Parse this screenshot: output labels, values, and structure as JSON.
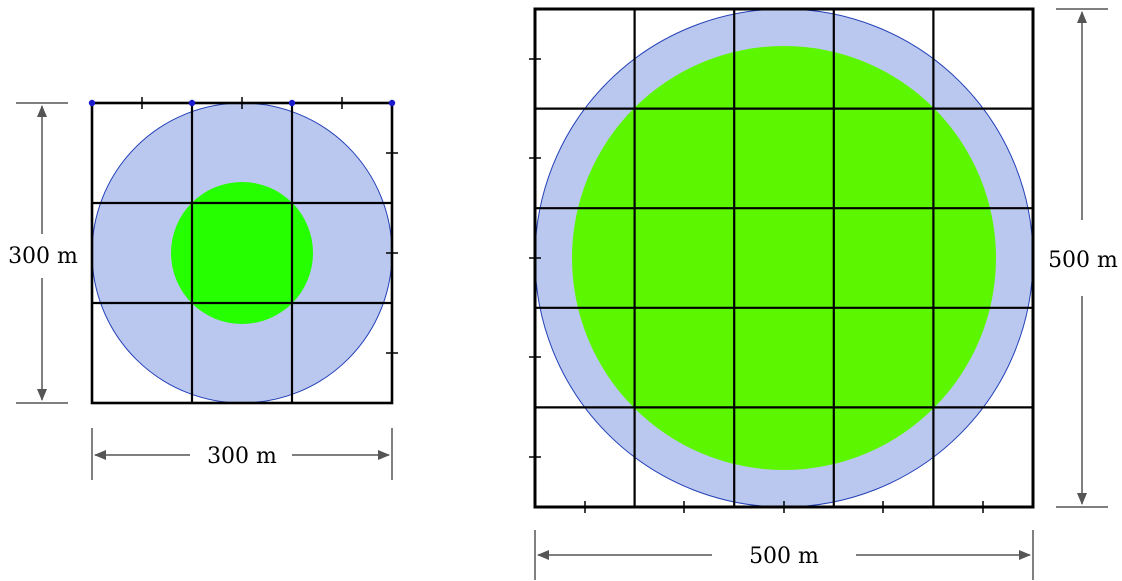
{
  "diagrams": [
    {
      "width_label": "300 m",
      "height_label": "300 m",
      "grid_divisions": 3,
      "circle_color": "#bac8ef",
      "circle_stroke": "#2340b8",
      "inner_circle_color": "#26ff00"
    },
    {
      "width_label": "500 m",
      "height_label": "500 m",
      "grid_divisions": 5,
      "circle_color": "#bac8ef",
      "circle_stroke": "#2340b8",
      "inner_circle_color": "#5cf700"
    }
  ],
  "colors": {
    "grid_line": "#000000",
    "dimension_line": "#555555",
    "marker_dot": "#1a1acc"
  }
}
